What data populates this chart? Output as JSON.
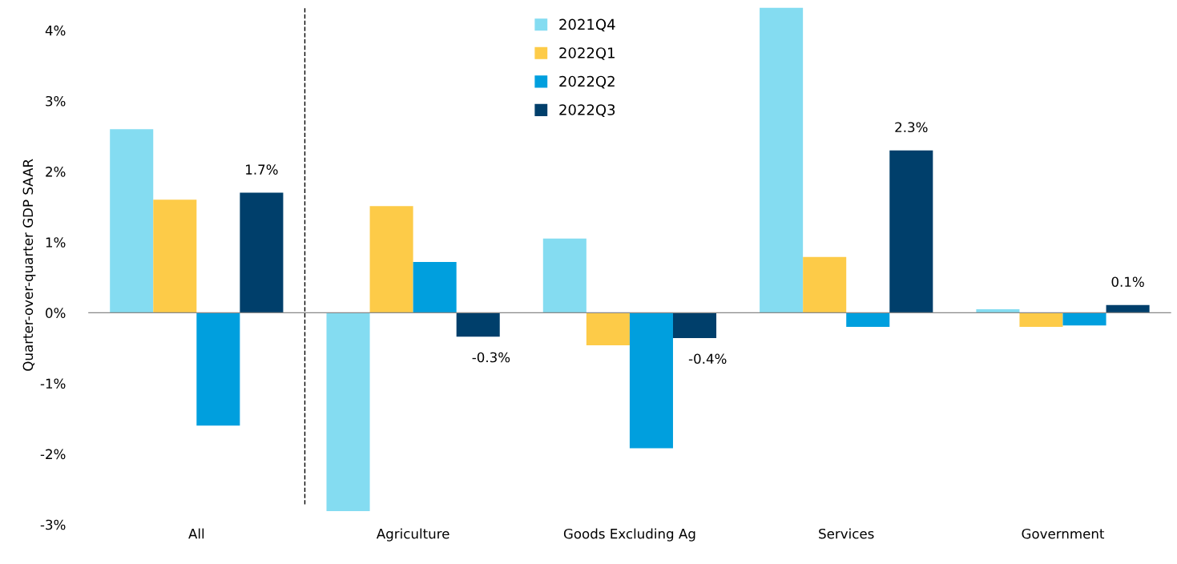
{
  "chart_data": {
    "type": "bar",
    "ylabel": "Quarter-over-quarter GDP SAAR",
    "categories": [
      "All",
      "Agriculture",
      "Goods Excluding Ag",
      "Services",
      "Government"
    ],
    "series": [
      {
        "name": "2021Q4",
        "color": "#84dcf1",
        "values": [
          2.6,
          -2.81,
          1.05,
          4.32,
          0.05
        ]
      },
      {
        "name": "2022Q1",
        "color": "#fdcb48",
        "values": [
          1.6,
          1.51,
          -0.46,
          0.79,
          -0.2
        ]
      },
      {
        "name": "2022Q2",
        "color": "#009fde",
        "values": [
          -1.6,
          0.72,
          -1.92,
          -0.2,
          -0.18
        ]
      },
      {
        "name": "2022Q3",
        "color": "#003f6b",
        "values": [
          1.7,
          -0.34,
          -0.36,
          2.3,
          0.11
        ],
        "value_labels": [
          "1.7%",
          "-0.3%",
          "-0.4%",
          "2.3%",
          "0.1%"
        ]
      }
    ],
    "ylim": [
      -3,
      4.35
    ],
    "yticks": [
      {
        "value": -3,
        "label": "-3%"
      },
      {
        "value": -2,
        "label": "-2%"
      },
      {
        "value": -1,
        "label": "-1%"
      },
      {
        "value": 0,
        "label": "0%"
      },
      {
        "value": 1,
        "label": "1%"
      },
      {
        "value": 2,
        "label": "2%"
      },
      {
        "value": 3,
        "label": "3%"
      },
      {
        "value": 4,
        "label": "4%"
      }
    ],
    "ref_lines": [
      {
        "axis": "y",
        "value": 0,
        "color": "#888888"
      }
    ],
    "grid": false,
    "legend": "top"
  }
}
